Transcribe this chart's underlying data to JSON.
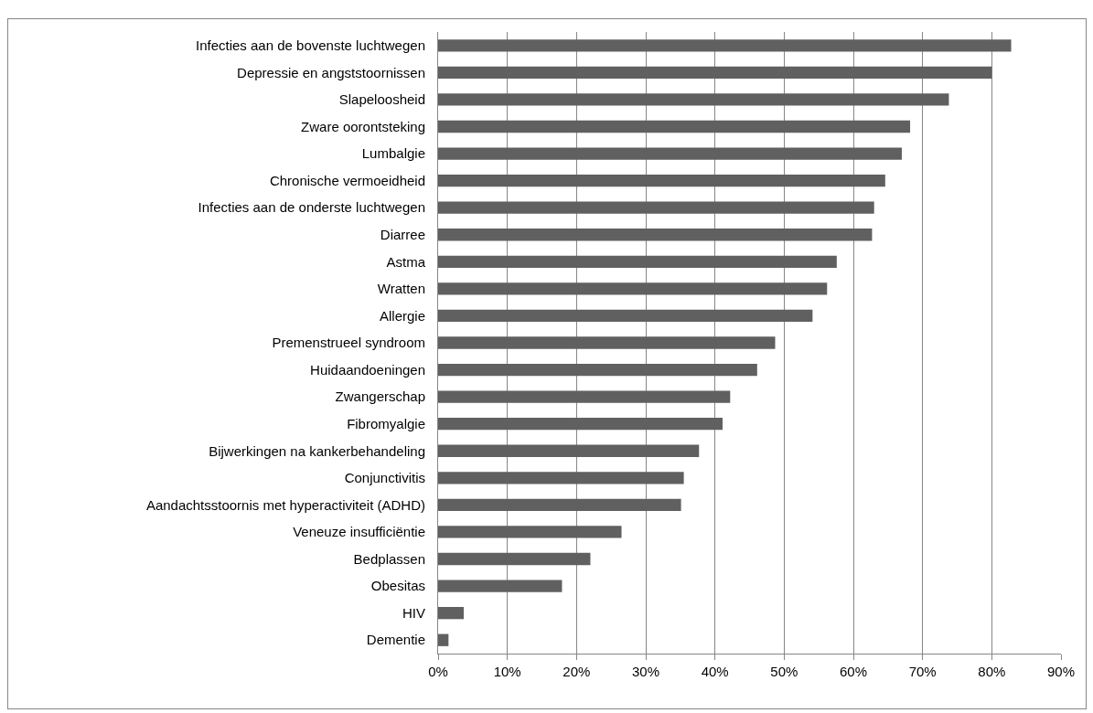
{
  "chart_data": {
    "type": "bar",
    "orientation": "horizontal",
    "categories": [
      "Infecties aan de bovenste luchtwegen",
      "Depressie en angststoornissen",
      "Slapeloosheid",
      "Zware oorontsteking",
      "Lumbalgie",
      "Chronische vermoeidheid",
      "Infecties aan de onderste luchtwegen",
      "Diarree",
      "Astma",
      "Wratten",
      "Allergie",
      "Premenstrueel syndroom",
      "Huidaandoeningen",
      "Zwangerschap",
      "Fibromyalgie",
      "Bijwerkingen na kankerbehandeling",
      "Conjunctivitis",
      "Aandachtsstoornis met hyperactiviteit (ADHD)",
      "Veneuze insufficiëntie",
      "Bedplassen",
      "Obesitas",
      "HIV",
      "Dementie"
    ],
    "values": [
      82.8,
      80.0,
      73.8,
      68.2,
      67.0,
      64.6,
      63.0,
      62.7,
      57.6,
      56.2,
      54.1,
      48.7,
      46.1,
      42.2,
      41.1,
      37.7,
      35.5,
      35.1,
      26.5,
      22.0,
      17.9,
      3.7,
      1.5
    ],
    "color": "#606060",
    "xlim": [
      0,
      90
    ],
    "xticks": [
      {
        "value": 0,
        "label": "0%"
      },
      {
        "value": 10,
        "label": "10%"
      },
      {
        "value": 20,
        "label": "20%"
      },
      {
        "value": 30,
        "label": "30%"
      },
      {
        "value": 40,
        "label": "40%"
      },
      {
        "value": 50,
        "label": "50%"
      },
      {
        "value": 60,
        "label": "60%"
      },
      {
        "value": 70,
        "label": "70%"
      },
      {
        "value": 80,
        "label": "80%"
      },
      {
        "value": 90,
        "label": "90%"
      }
    ],
    "grid": "x"
  }
}
